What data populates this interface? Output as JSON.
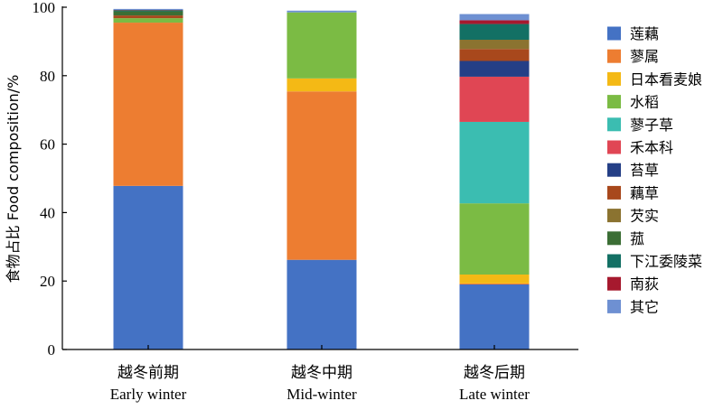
{
  "chart_data": {
    "type": "bar",
    "stacked": true,
    "ylabel": "食物占比 Food composition/%",
    "ylim": [
      0,
      100
    ],
    "yticks": [
      0,
      20,
      40,
      60,
      80,
      100
    ],
    "categories": [
      {
        "cn": "越冬前期",
        "en": "Early winter"
      },
      {
        "cn": "越冬中期",
        "en": "Mid-winter"
      },
      {
        "cn": "越冬后期",
        "en": "Late winter"
      }
    ],
    "series": [
      {
        "name": "莲藕",
        "color": "#4472C4",
        "values": [
          47.8,
          26.2,
          19.0
        ]
      },
      {
        "name": "蓼属",
        "color": "#ED7D31",
        "values": [
          47.7,
          49.2,
          0.3
        ]
      },
      {
        "name": "日本看麦娘",
        "color": "#F4B915",
        "values": [
          0.0,
          3.8,
          2.6
        ]
      },
      {
        "name": "水稻",
        "color": "#7BBB44",
        "values": [
          1.3,
          19.3,
          20.8
        ]
      },
      {
        "name": "蓼子草",
        "color": "#3BBDB1",
        "values": [
          0.0,
          0.0,
          23.8
        ]
      },
      {
        "name": "禾本科",
        "color": "#E04654",
        "values": [
          0.0,
          0.0,
          13.2
        ]
      },
      {
        "name": "苔草",
        "color": "#243F86",
        "values": [
          0.0,
          0.0,
          4.6
        ]
      },
      {
        "name": "藕草",
        "color": "#A8481C",
        "values": [
          0.8,
          0.0,
          3.5
        ]
      },
      {
        "name": "芡实",
        "color": "#8B7330",
        "values": [
          0.0,
          0.0,
          2.7
        ]
      },
      {
        "name": "菰",
        "color": "#3B6E35",
        "values": [
          1.2,
          0.0,
          0.0
        ]
      },
      {
        "name": "下江委陵菜",
        "color": "#137064",
        "values": [
          0.3,
          0.0,
          4.6
        ]
      },
      {
        "name": "南荻",
        "color": "#A6192E",
        "values": [
          0.1,
          0.0,
          1.1
        ]
      },
      {
        "name": "其它",
        "color": "#6E90D2",
        "values": [
          0.3,
          0.5,
          1.8
        ]
      }
    ]
  }
}
